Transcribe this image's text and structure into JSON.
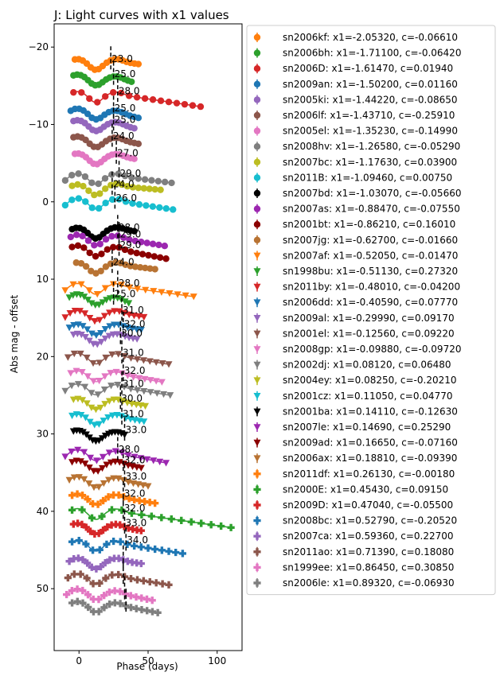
{
  "chart_data": {
    "type": "scatter",
    "title": "J: Light curves with x1 values",
    "xlabel": "Phase (days)",
    "ylabel": "Abs mag - offset",
    "xlim": [
      -18,
      118
    ],
    "ylim": [
      58,
      -23
    ],
    "y_inverted": true,
    "grid": false,
    "legend_position": "outside-right",
    "x_ticks": [
      0,
      50,
      100
    ],
    "y_ticks": [
      -20,
      -10,
      0,
      10,
      20,
      30,
      40,
      50
    ],
    "y_tick_labels": [
      "−20",
      "−10",
      "0",
      "10",
      "20",
      "30",
      "40",
      "50"
    ],
    "vline_labels": [
      "23.0",
      "25.0",
      "28.0",
      "25.0",
      "25.0",
      "24.0",
      "27.0",
      "29.0",
      "24.0",
      "26.0",
      "28.0",
      "29.0",
      "29.0",
      "24.0",
      "28.0",
      "25.0",
      "31.0",
      "32.0",
      "30.0",
      "31.0",
      "32.0",
      "31.0",
      "30.0",
      "31.0",
      "33.0",
      "28.0",
      "32.0",
      "33.0",
      "32.0",
      "32.0",
      "33.0",
      "34.0"
    ],
    "series": [
      {
        "name": "sn2006kf: x1=-2.05320, c=-0.06610",
        "color": "#ff7f0e",
        "marker": "o",
        "offset": -18.5,
        "peak": -3,
        "tmax": 43,
        "amp": 1.4,
        "vline": 23,
        "label": "23.0"
      },
      {
        "name": "sn2006bh: x1=-1.71100, c=-0.06420",
        "color": "#2ca02c",
        "marker": "o",
        "offset": -16.5,
        "peak": -4,
        "tmax": 38,
        "amp": 2.0,
        "vline": 25,
        "label": "25.0"
      },
      {
        "name": "sn2006D: x1=-1.61470, c=0.01940",
        "color": "#d62728",
        "marker": "o",
        "offset": -14.3,
        "peak": -4,
        "tmax": 88,
        "amp": 4.0,
        "vline": 28,
        "label": "28.0"
      },
      {
        "name": "sn2009an: x1=-1.50200, c=0.01160",
        "color": "#1f77b4",
        "marker": "o",
        "offset": -12.1,
        "peak": -6,
        "tmax": 43,
        "amp": 2.5,
        "vline": 25,
        "label": "25.0"
      },
      {
        "name": "sn2005ki: x1=-1.44220, c=-0.08650",
        "color": "#9467bd",
        "marker": "o",
        "offset": -10.6,
        "peak": -4,
        "tmax": 40,
        "amp": 2.2,
        "vline": 25,
        "label": "25.0"
      },
      {
        "name": "sn2006lf: x1=-1.43710, c=-0.25910",
        "color": "#8c564b",
        "marker": "o",
        "offset": -8.5,
        "peak": -4,
        "tmax": 43,
        "amp": 2.0,
        "vline": 24,
        "label": "24.0"
      },
      {
        "name": "sn2005el: x1=-1.35230, c=-0.14990",
        "color": "#e377c2",
        "marker": "o",
        "offset": -6.3,
        "peak": -3,
        "tmax": 40,
        "amp": 1.5,
        "vline": 27,
        "label": "27.0"
      },
      {
        "name": "sn2008hv: x1=-1.26580, c=-0.05290",
        "color": "#7f7f7f",
        "marker": "o",
        "offset": -3.7,
        "peak": -10,
        "tmax": 67,
        "amp": 2.5,
        "vline": 29,
        "label": "29.0"
      },
      {
        "name": "sn2007bc: x1=-1.17630, c=0.03900",
        "color": "#bcbd22",
        "marker": "o",
        "offset": -2.3,
        "peak": -5,
        "tmax": 59,
        "amp": 1.5,
        "vline": 24,
        "label": "24.0"
      },
      {
        "name": "sn2011B: x1=-1.09460, c=0.00750",
        "color": "#17becf",
        "marker": "o",
        "offset": -0.5,
        "peak": -10,
        "tmax": 68,
        "amp": 3.0,
        "vline": 26,
        "label": "26.0"
      },
      {
        "name": "sn2007bd: x1=-1.03070, c=-0.05660",
        "color": "#000000",
        "marker": "o",
        "offset": 3.3,
        "peak": -5,
        "tmax": 40,
        "amp": 1.0,
        "vline": 28,
        "label": "28.0"
      },
      {
        "name": "sn2007as: x1=-0.88470, c=-0.07550",
        "color": "#9c27b0",
        "marker": "o",
        "offset": 4.2,
        "peak": -6,
        "tmax": 62,
        "amp": 3.0,
        "vline": 29,
        "label": "29.0"
      },
      {
        "name": "sn2001bt: x1=-0.86210, c=0.16010",
        "color": "#8b0000",
        "marker": "o",
        "offset": 5.6,
        "peak": -5,
        "tmax": 63,
        "amp": 3.5,
        "vline": 29,
        "label": "29.0"
      },
      {
        "name": "sn2007jg: x1=-0.62700, c=-0.01660",
        "color": "#b87333",
        "marker": "o",
        "offset": 7.8,
        "peak": -2,
        "tmax": 55,
        "amp": 1.8,
        "vline": 24,
        "label": "24.0"
      },
      {
        "name": "sn2007af: x1=-0.52050, c=-0.01470",
        "color": "#ff7f0e",
        "marker": "v",
        "offset": 10.5,
        "peak": -10,
        "tmax": 83,
        "amp": 3.5,
        "vline": 28,
        "label": "28.0"
      },
      {
        "name": "sn1998bu: x1=-0.51130, c=0.27320",
        "color": "#2ca02c",
        "marker": "v",
        "offset": 11.9,
        "peak": -7,
        "tmax": 36,
        "amp": 2.5,
        "vline": 25,
        "label": "25.0"
      },
      {
        "name": "sn2011by: x1=-0.48010, c=-0.04200",
        "color": "#d62728",
        "marker": "v",
        "offset": 14.0,
        "peak": -10,
        "tmax": 47,
        "amp": 1.8,
        "vline": 31,
        "label": "31.0"
      },
      {
        "name": "sn2006dd: x1=-0.40590, c=0.07770",
        "color": "#1f77b4",
        "marker": "v",
        "offset": 15.8,
        "peak": -7,
        "tmax": 45,
        "amp": 1.5,
        "vline": 32,
        "label": "32.0"
      },
      {
        "name": "sn2009al: x1=-0.29990, c=0.09170",
        "color": "#9467bd",
        "marker": "v",
        "offset": 17.0,
        "peak": -4,
        "tmax": 42,
        "amp": 1.5,
        "vline": 30,
        "label": "30.0"
      },
      {
        "name": "sn2001el: x1=-0.12560, c=0.09220",
        "color": "#8c564b",
        "marker": "v",
        "offset": 19.5,
        "peak": -8,
        "tmax": 65,
        "amp": 3.0,
        "vline": 31,
        "label": "31.0"
      },
      {
        "name": "sn2008gp: x1=-0.09880, c=-0.09720",
        "color": "#e377c2",
        "marker": "v",
        "offset": 21.8,
        "peak": -6,
        "tmax": 60,
        "amp": 3.0,
        "vline": 32,
        "label": "32.0"
      },
      {
        "name": "sn2002dj: x1=0.08120, c=0.06480",
        "color": "#7f7f7f",
        "marker": "v",
        "offset": 23.5,
        "peak": -10,
        "tmax": 66,
        "amp": 3.0,
        "vline": 31,
        "label": "31.0"
      },
      {
        "name": "sn2004ey: x1=0.08250, c=-0.20210",
        "color": "#bcbd22",
        "marker": "v",
        "offset": 25.4,
        "peak": -4,
        "tmax": 48,
        "amp": 2.0,
        "vline": 30,
        "label": "30.0"
      },
      {
        "name": "sn2001cz: x1=0.11050, c=0.04770",
        "color": "#17becf",
        "marker": "v",
        "offset": 27.4,
        "peak": -5,
        "tmax": 47,
        "amp": 2.0,
        "vline": 31,
        "label": "31.0"
      },
      {
        "name": "sn2001ba: x1=0.14110, c=-0.12630",
        "color": "#000000",
        "marker": "v",
        "offset": 29.5,
        "peak": -4,
        "tmax": 33,
        "amp": 1.5,
        "vline": 33,
        "label": "33.0"
      },
      {
        "name": "sn2007le: x1=0.14690, c=0.25290",
        "color": "#9c27b0",
        "marker": "v",
        "offset": 32.0,
        "peak": -10,
        "tmax": 63,
        "amp": 3.5,
        "vline": 28,
        "label": "28.0"
      },
      {
        "name": "sn2009ad: x1=0.16650, c=-0.07160",
        "color": "#8b0000",
        "marker": "v",
        "offset": 33.4,
        "peak": -5,
        "tmax": 45,
        "amp": 2.0,
        "vline": 32,
        "label": "32.0"
      },
      {
        "name": "sn2006ax: x1=0.18810, c=-0.09390",
        "color": "#b87333",
        "marker": "v",
        "offset": 35.5,
        "peak": -7,
        "tmax": 50,
        "amp": 2.5,
        "vline": 33,
        "label": "33.0"
      },
      {
        "name": "sn2011df: x1=0.26130, c=-0.00180",
        "color": "#ff7f0e",
        "marker": "P",
        "offset": 37.7,
        "peak": -5,
        "tmax": 55,
        "amp": 2.5,
        "vline": 32,
        "label": "32.0"
      },
      {
        "name": "sn2000E: x1=0.45430, c=0.09150",
        "color": "#2ca02c",
        "marker": "P",
        "offset": 39.6,
        "peak": -5,
        "tmax": 110,
        "amp": 5.0,
        "vline": 32,
        "label": "32.0"
      },
      {
        "name": "sn2009D: x1=0.47040, c=-0.05500",
        "color": "#d62728",
        "marker": "P",
        "offset": 41.5,
        "peak": -4,
        "tmax": 45,
        "amp": 2.0,
        "vline": 33,
        "label": "33.0"
      },
      {
        "name": "sn2008bc: x1=0.52790, c=-0.20520",
        "color": "#1f77b4",
        "marker": "P",
        "offset": 43.7,
        "peak": -5,
        "tmax": 75,
        "amp": 3.5,
        "vline": 34,
        "label": "34.0"
      },
      {
        "name": "sn2007ca: x1=0.59360, c=0.22700",
        "color": "#9467bd",
        "marker": "P",
        "offset": 46.0,
        "peak": -7,
        "tmax": 45,
        "amp": 1.5,
        "vline": 32,
        "label": ""
      },
      {
        "name": "sn2011ao: x1=0.71390, c=0.18080",
        "color": "#8c564b",
        "marker": "P",
        "offset": 48.0,
        "peak": -8,
        "tmax": 65,
        "amp": 3.0,
        "vline": 32,
        "label": ""
      },
      {
        "name": "sn1999ee: x1=0.86450, c=0.30850",
        "color": "#e377c2",
        "marker": "P",
        "offset": 50.0,
        "peak": -9,
        "tmax": 53,
        "amp": 3.0,
        "vline": 33,
        "label": ""
      },
      {
        "name": "sn2006le: x1=0.89320, c=-0.06930",
        "color": "#7f7f7f",
        "marker": "P",
        "offset": 51.6,
        "peak": -5,
        "tmax": 57,
        "amp": 3.0,
        "vline": 34,
        "label": ""
      }
    ]
  }
}
